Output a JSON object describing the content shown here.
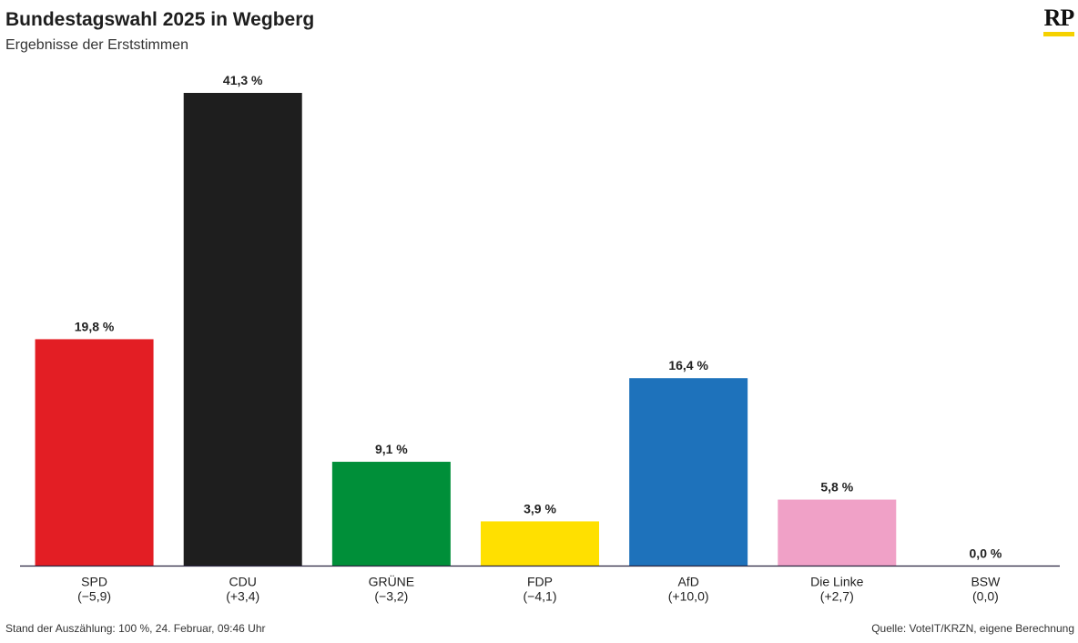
{
  "header": {
    "title": "Bundestagswahl 2025 in Wegberg",
    "subtitle": "Ergebnisse der Erststimmen"
  },
  "logo": {
    "text": "RP",
    "accent": "#f5d100"
  },
  "footer": {
    "status": "Stand der Auszählung: 100 %, 24. Februar, 09:46 Uhr",
    "source": "Quelle: VoteIT/KRZN, eigene Berechnung"
  },
  "chart_data": {
    "type": "bar",
    "title": "Bundestagswahl 2025 in Wegberg",
    "subtitle": "Ergebnisse der Erststimmen",
    "categories": [
      "SPD",
      "CDU",
      "GRÜNE",
      "FDP",
      "AfD",
      "Die Linke",
      "BSW"
    ],
    "values": [
      19.8,
      41.3,
      9.1,
      3.9,
      16.4,
      5.8,
      0.0
    ],
    "value_labels": [
      "19,8 %",
      "41,3 %",
      "9,1 %",
      "3,9 %",
      "16,4 %",
      "5,8 %",
      "0,0 %"
    ],
    "changes": [
      "(−5,9)",
      "(+3,4)",
      "(−3,2)",
      "(−4,1)",
      "(+10,0)",
      "(+2,7)",
      "(0,0)"
    ],
    "colors": [
      "#e31e24",
      "#1e1e1e",
      "#008f39",
      "#ffe000",
      "#1e72bb",
      "#f0a1c7",
      "#7a1f4f"
    ],
    "ylim": [
      0,
      41.3
    ],
    "grid": false,
    "xlabel": "",
    "ylabel": ""
  }
}
